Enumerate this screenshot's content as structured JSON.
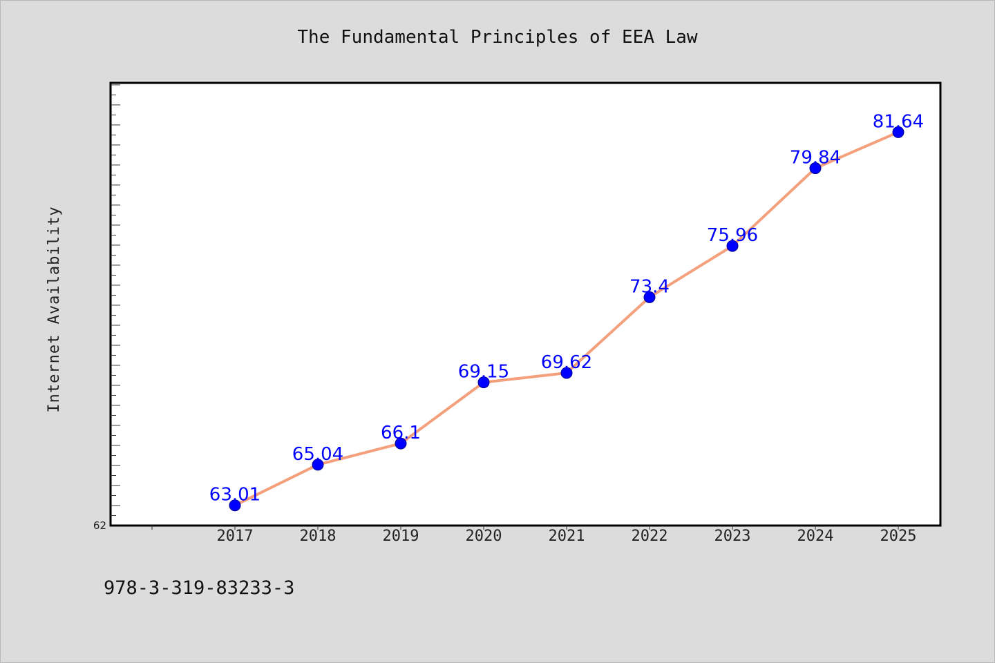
{
  "chart_data": {
    "type": "line",
    "title": "The Fundamental Principles of EEA Law",
    "xlabel": "",
    "ylabel": "Internet Availability",
    "x": [
      "2017",
      "2018",
      "2019",
      "2020",
      "2021",
      "2022",
      "2023",
      "2024",
      "2025"
    ],
    "series": [
      {
        "values": [
          63.01,
          65.04,
          66.1,
          69.15,
          69.62,
          73.4,
          75.96,
          79.84,
          81.64
        ]
      }
    ],
    "ylim": [
      62,
      84.1
    ],
    "y_tick_labels": [
      "62"
    ],
    "y_tick_step": 0.5,
    "y_major_step": 1,
    "grid": false,
    "legend": "none",
    "colors": {
      "line": "#f4a07c",
      "marker": "#0000ff",
      "marker_edge": "#00008b",
      "data_label": "#0000ff",
      "plot_background": "#ffffff",
      "figure_background": "#dcdcdc"
    }
  },
  "footer": {
    "isbn": "978-3-319-83233-3"
  }
}
